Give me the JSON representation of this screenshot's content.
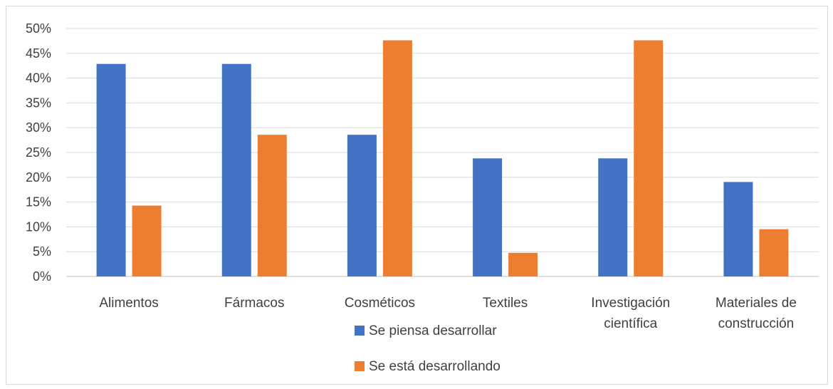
{
  "chart_data": {
    "type": "bar",
    "categories": [
      [
        "Alimentos"
      ],
      [
        "Fármacos"
      ],
      [
        "Cosméticos"
      ],
      [
        "Textiles"
      ],
      [
        "Investigación",
        "científica"
      ],
      [
        "Materiales de",
        "construcción"
      ]
    ],
    "series": [
      {
        "name": "Se piensa desarrollar",
        "color": "#4472c4",
        "values": [
          0.4286,
          0.4286,
          0.2857,
          0.2381,
          0.2381,
          0.1905
        ]
      },
      {
        "name": "Se está desarrollando",
        "color": "#ed7d31",
        "values": [
          0.1429,
          0.2857,
          0.4762,
          0.0476,
          0.4762,
          0.0952
        ]
      }
    ],
    "ylim": [
      0,
      0.5
    ],
    "yticks": [
      "0%",
      "5%",
      "10%",
      "15%",
      "20%",
      "25%",
      "30%",
      "35%",
      "40%",
      "45%",
      "50%"
    ],
    "grid": true,
    "legend_position": "bottom"
  }
}
